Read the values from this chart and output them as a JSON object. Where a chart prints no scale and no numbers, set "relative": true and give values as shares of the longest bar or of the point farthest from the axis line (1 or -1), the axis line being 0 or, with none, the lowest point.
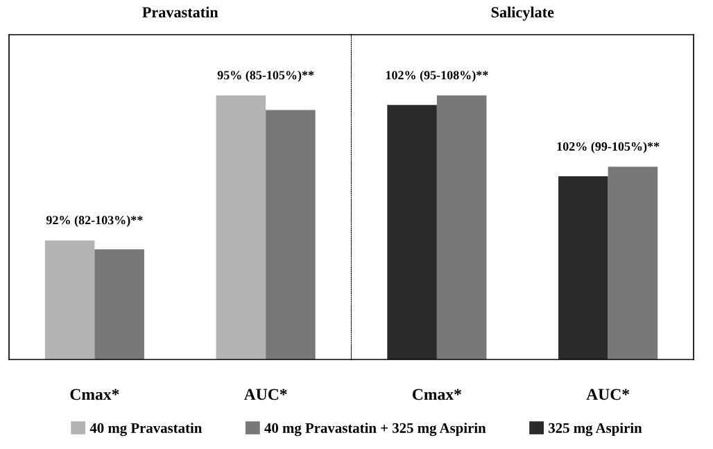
{
  "chart_data": [
    {
      "type": "bar",
      "title": "Pravastatin",
      "relative": true,
      "categories": [
        "Cmax*",
        "AUC*"
      ],
      "legend": "bottom",
      "series": [
        {
          "name": "40 mg Pravastatin",
          "color": "#b3b3b3",
          "values": [
            0.451,
            1
          ]
        },
        {
          "name": "40 mg Pravastatin + 325 mg Aspirin",
          "color": "#787878",
          "values": [
            0.417,
            0.945
          ]
        }
      ],
      "annotations": [
        {
          "text": "92% (82-103%)**",
          "x": "Cmax*",
          "y": 0.451
        },
        {
          "text": "95% (85-105%)**",
          "x": "AUC*",
          "y": 1
        }
      ]
    },
    {
      "type": "bar",
      "title": "Salicylate",
      "relative": true,
      "categories": [
        "Cmax*",
        "AUC*"
      ],
      "legend": "bottom",
      "series": [
        {
          "name": "325 mg Aspirin",
          "color": "#2a2a2a",
          "values": [
            0.964,
            0.694
          ]
        },
        {
          "name": "40 mg Pravastatin + 325 mg Aspirin",
          "color": "#787878",
          "values": [
            1,
            0.73
          ]
        }
      ],
      "annotations": [
        {
          "text": "102% (95-108%)**",
          "x": "Cmax*",
          "y": 1
        },
        {
          "text": "102% (99-105%)**",
          "x": "AUC*",
          "y": 0.73
        }
      ]
    }
  ]
}
